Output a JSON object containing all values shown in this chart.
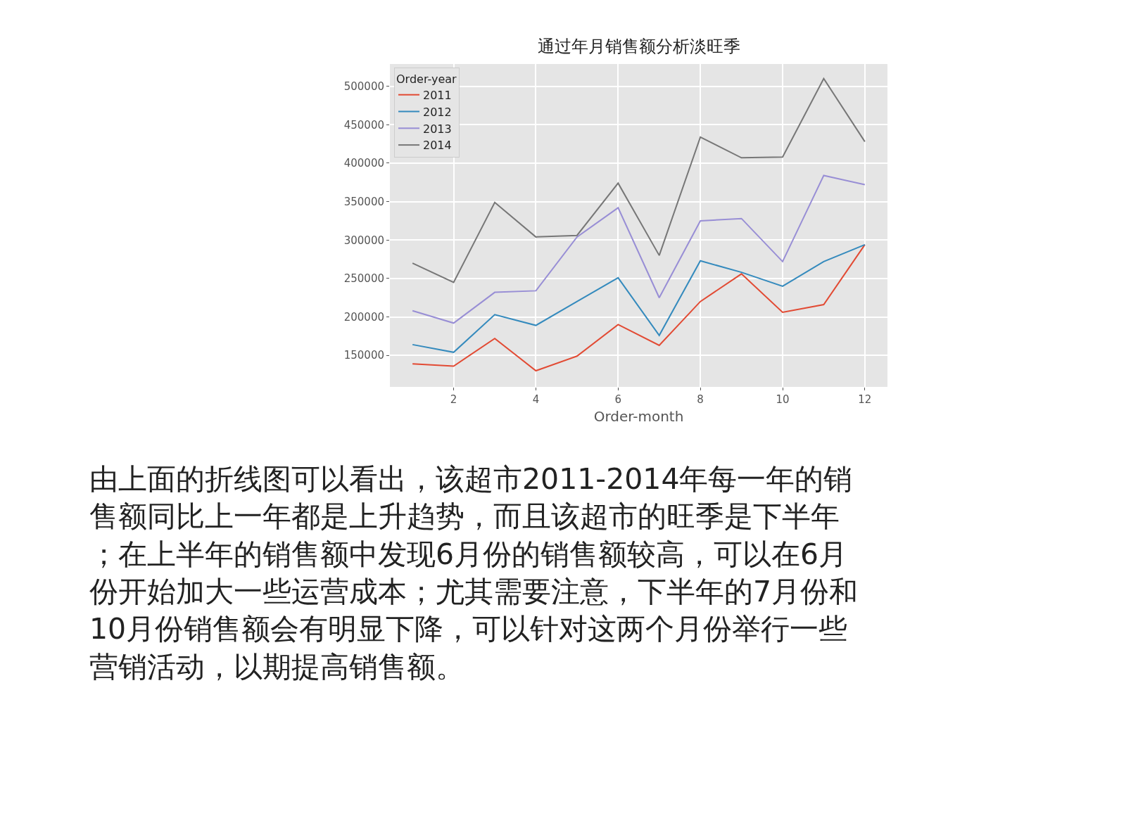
{
  "chart_data": {
    "type": "line",
    "title": "通过年月销售额分析淡旺季",
    "xlabel": "Order-month",
    "legend_title": "Order-year",
    "x": [
      1,
      2,
      3,
      4,
      5,
      6,
      7,
      8,
      9,
      10,
      11,
      12
    ],
    "series": [
      {
        "name": "2011",
        "color": "#e24a33",
        "values": [
          139000,
          136000,
          172000,
          130000,
          149000,
          190000,
          163000,
          220000,
          256000,
          206000,
          216000,
          294000
        ]
      },
      {
        "name": "2012",
        "color": "#348abd",
        "values": [
          164000,
          154000,
          203000,
          189000,
          220000,
          251000,
          176000,
          273000,
          258000,
          240000,
          272000,
          294000
        ]
      },
      {
        "name": "2013",
        "color": "#988ed5",
        "values": [
          208000,
          192000,
          232000,
          234000,
          304000,
          342000,
          225000,
          325000,
          328000,
          272000,
          384000,
          372000
        ]
      },
      {
        "name": "2014",
        "color": "#777777",
        "values": [
          270000,
          245000,
          349000,
          304000,
          306000,
          374000,
          280000,
          434000,
          407000,
          408000,
          510000,
          428000
        ]
      }
    ],
    "xlim": [
      0.45,
      12.55
    ],
    "xticks": [
      2,
      4,
      6,
      8,
      10,
      12
    ],
    "ylim": [
      109000,
      529000
    ],
    "yticks": [
      150000,
      200000,
      250000,
      300000,
      350000,
      400000,
      450000,
      500000
    ],
    "grid": true,
    "legend": "top left",
    "marker": "none",
    "line_style": "solid",
    "annotations": [
      "由上面的折线图可以看出，该超市2011-2014年每一年的销售额同比上一年都是上升趋势，而且该超市的旺季是下半年；在上半年的销售额中发现6月份的销售额较高，可以在6月份开始加大一些运营成本；尤其需要注意，下半年的7月份和10月份销售额会有明显下降，可以针对这两个月份举行一些营销活动，以期提高销售额。"
    ]
  }
}
